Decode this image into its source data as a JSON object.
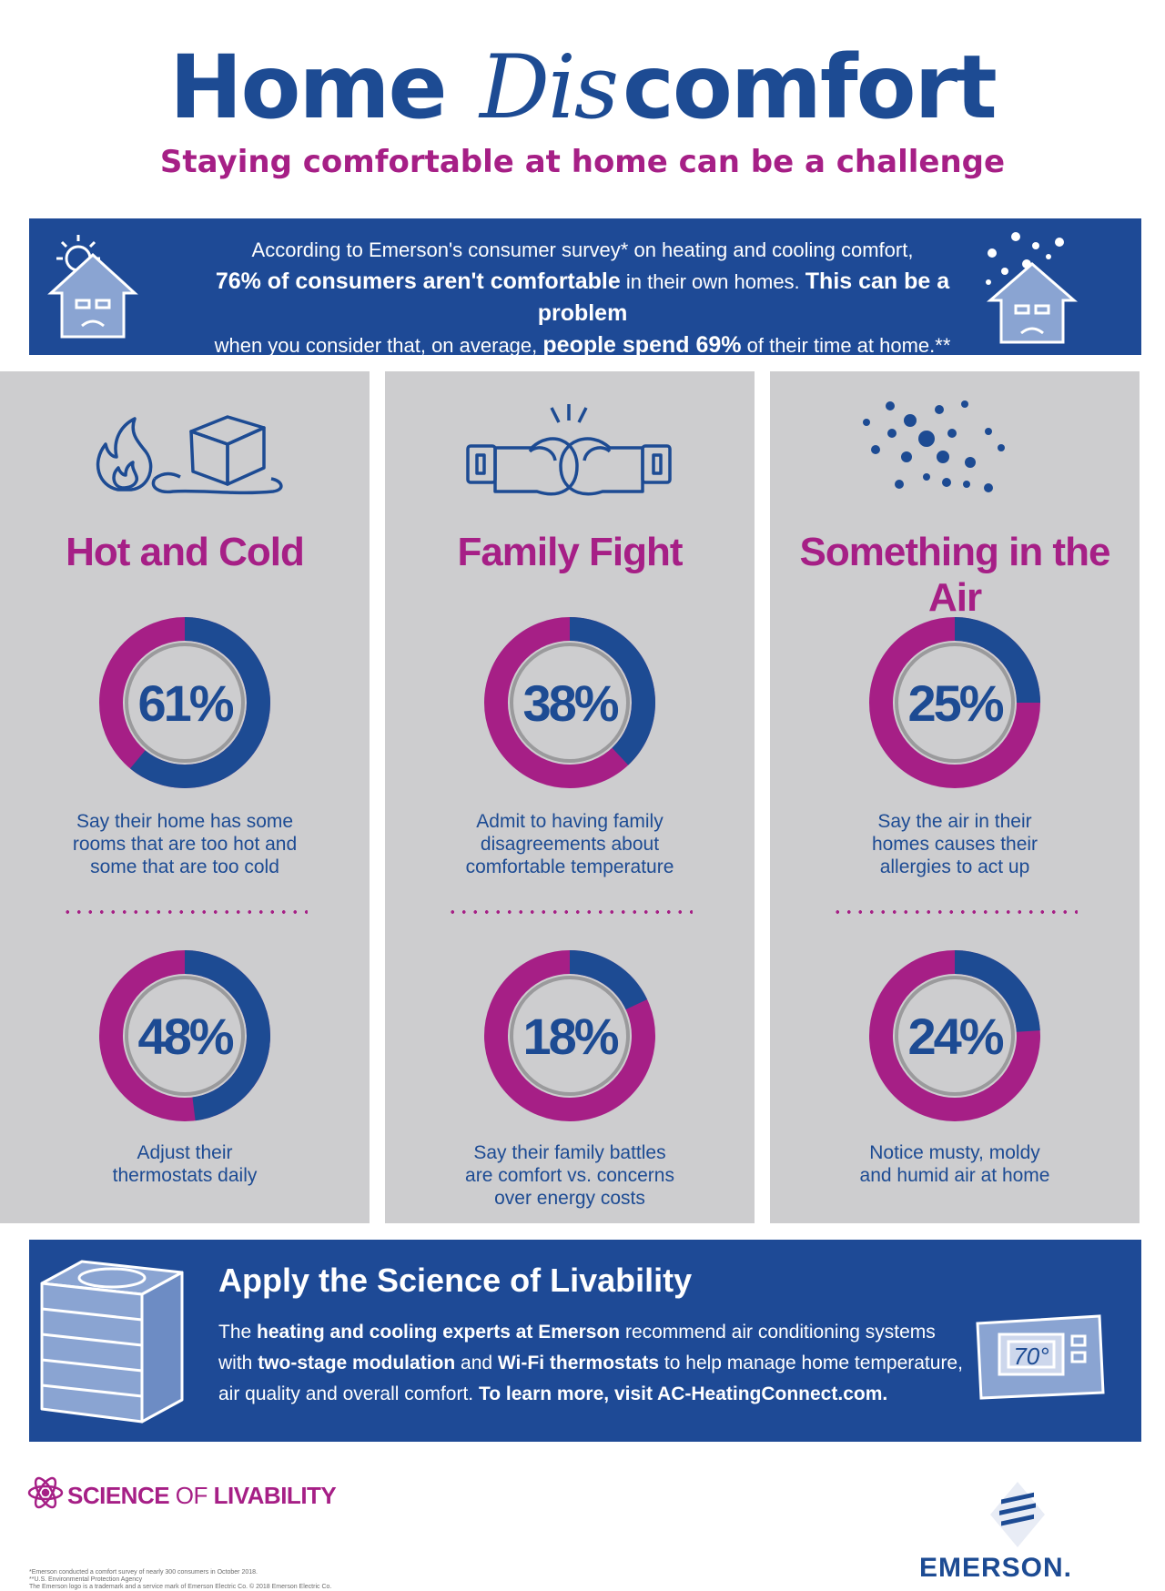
{
  "header": {
    "title_part1": "Home ",
    "title_script": "Dis",
    "title_part2": "comfort",
    "subtitle": "Staying comfortable at home can be a challenge"
  },
  "intro": {
    "line1": "According to Emerson's consumer survey* on heating and cooling comfort,",
    "line2_bold": "76% of consumers aren't comfortable",
    "line2_rest": " in their own homes. ",
    "line2_bold2": "This can be a problem",
    "line3_pre": "when you consider that, on average, ",
    "line3_bold": "people spend 69%",
    "line3_rest": " of their time at home.**",
    "icons": [
      "sun-house-sad-icon",
      "snow-house-sad-icon"
    ]
  },
  "columns": [
    {
      "icon": "fire-and-ice-cube-icon",
      "title": "Hot and Cold",
      "stats": [
        {
          "percent": "61%",
          "value": 61,
          "label_lines": [
            "Say their home has some",
            "rooms that are too hot and",
            "some that are too cold"
          ]
        },
        {
          "percent": "48%",
          "value": 48,
          "label_lines": [
            "Adjust their",
            "thermostats daily"
          ]
        }
      ]
    },
    {
      "icon": "boxing-gloves-icon",
      "title": "Family Fight",
      "stats": [
        {
          "percent": "38%",
          "value": 38,
          "label_lines": [
            "Admit to having family",
            "disagreements about",
            "comfortable temperature"
          ]
        },
        {
          "percent": "18%",
          "value": 18,
          "label_lines": [
            "Say their family battles",
            "are comfort vs. concerns",
            "over energy costs"
          ]
        }
      ]
    },
    {
      "icon": "air-particles-icon",
      "title": "Something in the Air",
      "stats": [
        {
          "percent": "25%",
          "value": 25,
          "label_lines": [
            "Say the air in their",
            "homes causes their",
            "allergies to act up"
          ]
        },
        {
          "percent": "24%",
          "value": 24,
          "label_lines": [
            "Notice musty, moldy",
            "and humid air at home"
          ]
        }
      ]
    }
  ],
  "bottom": {
    "title": "Apply the Science of Livability",
    "p1_pre": "The ",
    "p1_bold": "heating and cooling experts at Emerson",
    "p1_rest": " recommend air conditioning systems",
    "p2_pre": "with ",
    "p2_bold1": "two-stage modulation",
    "p2_mid": " and ",
    "p2_bold2": "Wi-Fi thermostats",
    "p2_rest": " to help manage home temperature,",
    "p3_pre": "air quality and overall comfort. ",
    "p3_bold": "To learn more, visit AC-HeatingConnect.com.",
    "thermostat_reading": "70°",
    "icons": [
      "ac-unit-icon",
      "thermostat-icon"
    ]
  },
  "footer": {
    "brand_bold": "SCIENCE",
    "brand_thin": " OF ",
    "brand_bold2": "LIVABILITY",
    "footnote1": "*Emerson conducted a comfort survey of nearly 300 consumers in October 2018.",
    "footnote2": "**U.S. Environmental Protection Agency",
    "footnote3": "The Emerson logo is a trademark and a service mark of Emerson Electric Co. © 2018 Emerson Electric Co.",
    "company": "EMERSON."
  },
  "colors": {
    "navy": "#1d4b93",
    "magenta": "#a61f86",
    "panel_gray": "#cdcdcf"
  }
}
